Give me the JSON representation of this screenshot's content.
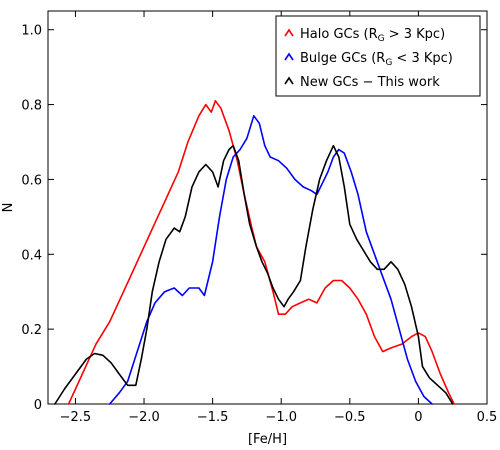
{
  "chart_data": {
    "type": "line",
    "xlabel": "[Fe/H]",
    "ylabel": "N",
    "xlim": [
      -2.7,
      0.5
    ],
    "ylim": [
      0,
      1.05
    ],
    "x_ticks": [
      -2.5,
      -2.0,
      -1.5,
      -1.0,
      -0.5,
      0,
      0.5
    ],
    "x_tick_labels": [
      "−2.5",
      "−2.0",
      "−1.5",
      "−1.0",
      "−0.5",
      "0",
      "0.5"
    ],
    "y_ticks": [
      0,
      0.2,
      0.4,
      0.6,
      0.8,
      1.0
    ],
    "y_tick_labels": [
      "0",
      "0.2",
      "0.4",
      "0.6",
      "0.8",
      "1.0"
    ],
    "grid": false,
    "legend_position": "top-right",
    "series": [
      {
        "name": "Halo GCs (R_G > 3 Kpc)",
        "legend": {
          "prefix": "Halo GCs (R",
          "sub": "G",
          "suffix": " > 3 Kpc)"
        },
        "color": "#ff0000",
        "points": [
          [
            -2.55,
            0.0
          ],
          [
            -2.45,
            0.08
          ],
          [
            -2.35,
            0.16
          ],
          [
            -2.25,
            0.22
          ],
          [
            -2.15,
            0.3
          ],
          [
            -2.05,
            0.38
          ],
          [
            -1.95,
            0.46
          ],
          [
            -1.85,
            0.54
          ],
          [
            -1.75,
            0.62
          ],
          [
            -1.68,
            0.7
          ],
          [
            -1.6,
            0.77
          ],
          [
            -1.55,
            0.8
          ],
          [
            -1.51,
            0.78
          ],
          [
            -1.48,
            0.81
          ],
          [
            -1.44,
            0.79
          ],
          [
            -1.38,
            0.73
          ],
          [
            -1.32,
            0.65
          ],
          [
            -1.27,
            0.56
          ],
          [
            -1.22,
            0.48
          ],
          [
            -1.18,
            0.42
          ],
          [
            -1.12,
            0.38
          ],
          [
            -1.06,
            0.3
          ],
          [
            -1.02,
            0.24
          ],
          [
            -0.97,
            0.24
          ],
          [
            -0.92,
            0.26
          ],
          [
            -0.86,
            0.27
          ],
          [
            -0.8,
            0.28
          ],
          [
            -0.74,
            0.27
          ],
          [
            -0.68,
            0.31
          ],
          [
            -0.62,
            0.33
          ],
          [
            -0.56,
            0.33
          ],
          [
            -0.5,
            0.31
          ],
          [
            -0.44,
            0.28
          ],
          [
            -0.38,
            0.24
          ],
          [
            -0.32,
            0.18
          ],
          [
            -0.26,
            0.14
          ],
          [
            -0.2,
            0.15
          ],
          [
            -0.12,
            0.16
          ],
          [
            -0.05,
            0.18
          ],
          [
            0.0,
            0.19
          ],
          [
            0.05,
            0.18
          ],
          [
            0.1,
            0.14
          ],
          [
            0.16,
            0.08
          ],
          [
            0.22,
            0.03
          ],
          [
            0.26,
            0.0
          ]
        ]
      },
      {
        "name": "Bulge GCs (R_G < 3 Kpc)",
        "legend": {
          "prefix": "Bulge GCs (R",
          "sub": "G",
          "suffix": " < 3 Kpc)"
        },
        "color": "#0000ff",
        "points": [
          [
            -2.25,
            0.0
          ],
          [
            -2.18,
            0.03
          ],
          [
            -2.12,
            0.06
          ],
          [
            -2.05,
            0.14
          ],
          [
            -1.98,
            0.22
          ],
          [
            -1.92,
            0.27
          ],
          [
            -1.85,
            0.3
          ],
          [
            -1.78,
            0.31
          ],
          [
            -1.72,
            0.29
          ],
          [
            -1.67,
            0.31
          ],
          [
            -1.6,
            0.31
          ],
          [
            -1.56,
            0.29
          ],
          [
            -1.5,
            0.38
          ],
          [
            -1.45,
            0.5
          ],
          [
            -1.4,
            0.6
          ],
          [
            -1.35,
            0.66
          ],
          [
            -1.3,
            0.68
          ],
          [
            -1.25,
            0.71
          ],
          [
            -1.2,
            0.77
          ],
          [
            -1.16,
            0.75
          ],
          [
            -1.12,
            0.69
          ],
          [
            -1.08,
            0.66
          ],
          [
            -1.02,
            0.65
          ],
          [
            -0.96,
            0.63
          ],
          [
            -0.9,
            0.6
          ],
          [
            -0.84,
            0.58
          ],
          [
            -0.78,
            0.57
          ],
          [
            -0.74,
            0.56
          ],
          [
            -0.7,
            0.59
          ],
          [
            -0.66,
            0.62
          ],
          [
            -0.62,
            0.66
          ],
          [
            -0.58,
            0.68
          ],
          [
            -0.54,
            0.67
          ],
          [
            -0.49,
            0.62
          ],
          [
            -0.44,
            0.56
          ],
          [
            -0.38,
            0.46
          ],
          [
            -0.32,
            0.4
          ],
          [
            -0.26,
            0.34
          ],
          [
            -0.2,
            0.28
          ],
          [
            -0.14,
            0.2
          ],
          [
            -0.08,
            0.12
          ],
          [
            -0.02,
            0.06
          ],
          [
            0.04,
            0.02
          ],
          [
            0.1,
            0.0
          ]
        ]
      },
      {
        "name": "New GCs − This work",
        "legend": {
          "prefix": "New GCs − This work",
          "sub": "",
          "suffix": ""
        },
        "color": "#000000",
        "points": [
          [
            -2.65,
            0.0
          ],
          [
            -2.58,
            0.04
          ],
          [
            -2.5,
            0.08
          ],
          [
            -2.42,
            0.12
          ],
          [
            -2.36,
            0.135
          ],
          [
            -2.3,
            0.13
          ],
          [
            -2.24,
            0.11
          ],
          [
            -2.18,
            0.08
          ],
          [
            -2.12,
            0.05
          ],
          [
            -2.06,
            0.05
          ],
          [
            -2.02,
            0.12
          ],
          [
            -1.98,
            0.2
          ],
          [
            -1.94,
            0.3
          ],
          [
            -1.89,
            0.38
          ],
          [
            -1.84,
            0.44
          ],
          [
            -1.78,
            0.47
          ],
          [
            -1.74,
            0.46
          ],
          [
            -1.7,
            0.5
          ],
          [
            -1.65,
            0.58
          ],
          [
            -1.6,
            0.62
          ],
          [
            -1.55,
            0.64
          ],
          [
            -1.5,
            0.62
          ],
          [
            -1.46,
            0.58
          ],
          [
            -1.42,
            0.65
          ],
          [
            -1.38,
            0.68
          ],
          [
            -1.35,
            0.69
          ],
          [
            -1.31,
            0.65
          ],
          [
            -1.27,
            0.56
          ],
          [
            -1.23,
            0.48
          ],
          [
            -1.18,
            0.42
          ],
          [
            -1.14,
            0.38
          ],
          [
            -1.1,
            0.35
          ],
          [
            -1.06,
            0.31
          ],
          [
            -1.02,
            0.28
          ],
          [
            -0.98,
            0.26
          ],
          [
            -0.95,
            0.28
          ],
          [
            -0.91,
            0.3
          ],
          [
            -0.86,
            0.33
          ],
          [
            -0.82,
            0.42
          ],
          [
            -0.77,
            0.52
          ],
          [
            -0.72,
            0.6
          ],
          [
            -0.67,
            0.65
          ],
          [
            -0.62,
            0.69
          ],
          [
            -0.58,
            0.66
          ],
          [
            -0.54,
            0.58
          ],
          [
            -0.5,
            0.48
          ],
          [
            -0.45,
            0.44
          ],
          [
            -0.4,
            0.41
          ],
          [
            -0.35,
            0.38
          ],
          [
            -0.3,
            0.36
          ],
          [
            -0.25,
            0.36
          ],
          [
            -0.2,
            0.38
          ],
          [
            -0.15,
            0.36
          ],
          [
            -0.1,
            0.32
          ],
          [
            -0.05,
            0.26
          ],
          [
            0.0,
            0.18
          ],
          [
            0.03,
            0.1
          ],
          [
            0.08,
            0.07
          ],
          [
            0.14,
            0.05
          ],
          [
            0.2,
            0.03
          ],
          [
            0.25,
            0.0
          ]
        ]
      }
    ]
  }
}
